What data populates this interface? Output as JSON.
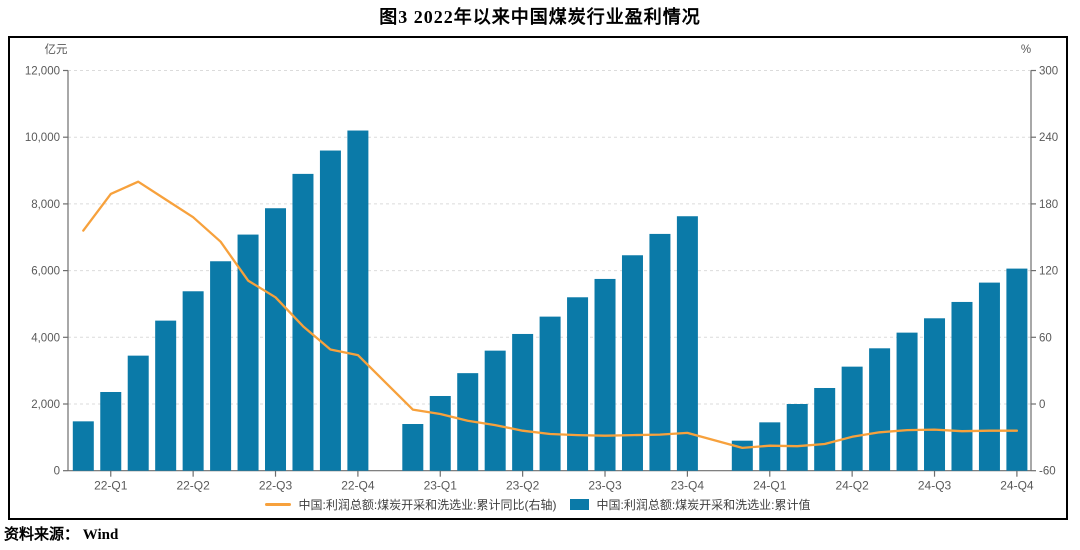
{
  "page": {
    "title": "图3  2022年以来中国煤炭行业盈利情况",
    "source": "资料来源： Wind"
  },
  "chart_data": {
    "type": "bar+line",
    "title": "图3  2022年以来中国煤炭行业盈利情况",
    "y_left_axis": {
      "label": "亿元",
      "min": 0,
      "max": 12000,
      "step": 2000,
      "tick_labels": [
        "0",
        "2,000",
        "4,000",
        "6,000",
        "8,000",
        "10,000",
        "12,000"
      ]
    },
    "y_right_axis": {
      "label": "%",
      "min": -60,
      "max": 300,
      "step": 60,
      "tick_labels": [
        "-60",
        "0",
        "60",
        "120",
        "180",
        "240",
        "300"
      ]
    },
    "x_axis": {
      "tick_labels": [
        "22-Q1",
        "22-Q2",
        "22-Q3",
        "22-Q4",
        "23-Q1",
        "23-Q2",
        "23-Q3",
        "23-Q4",
        "24-Q1",
        "24-Q2",
        "24-Q3",
        "24-Q4"
      ],
      "tick_slots": [
        1,
        4,
        7,
        10,
        13,
        16,
        19,
        22,
        25,
        28,
        31,
        34
      ],
      "n_slots": 35,
      "gap_slots": [
        11,
        23
      ]
    },
    "grid": {
      "color": "#DBDBDB",
      "dashed": true
    },
    "axis_color": "#6E6E6E",
    "tick_text_color": "#595959",
    "legend_position": "bottom-center",
    "series": {
      "bars": {
        "label": "中国:利润总额:煤炭开采和洗选业:累计值",
        "color": "#0B7AA8",
        "axis": "left",
        "values": [
          1480,
          2360,
          3450,
          4500,
          5380,
          6280,
          7080,
          7870,
          8900,
          9600,
          10200,
          null,
          1400,
          2240,
          2925,
          3600,
          4100,
          4620,
          5200,
          5750,
          6460,
          7100,
          7630,
          null,
          900,
          1450,
          2000,
          2480,
          3120,
          3670,
          4140,
          4570,
          5060,
          5640,
          6060
        ]
      },
      "line": {
        "label": "中国:利润总额:煤炭开采和洗选业:累计同比(右轴)",
        "color": "#F7A13C",
        "axis": "right",
        "values": [
          156,
          189,
          200,
          184,
          168,
          146,
          111,
          96,
          70,
          49,
          44,
          null,
          -5,
          -9,
          -15,
          -19,
          -24,
          -27,
          -28,
          -28.5,
          -28,
          -27.5,
          -26,
          null,
          -39.5,
          -37.5,
          -38,
          -36,
          -29.5,
          -25.5,
          -23.5,
          -23,
          -24.5,
          -24,
          -24
        ]
      }
    }
  }
}
